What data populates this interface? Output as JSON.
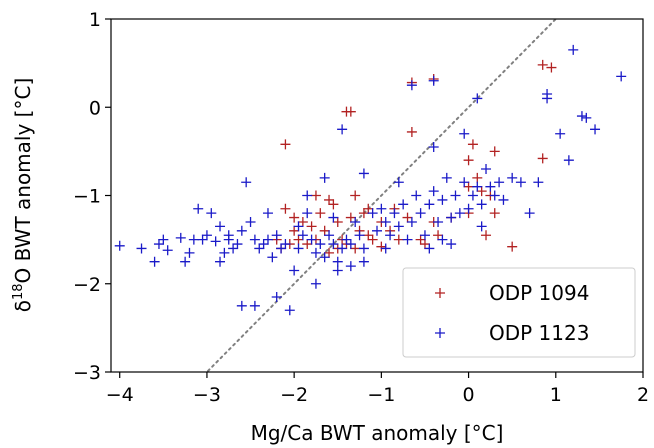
{
  "chart_data": {
    "type": "scatter",
    "title": "",
    "xlabel": "Mg/Ca BWT anomaly [°C]",
    "ylabel_parts": {
      "delta": "δ",
      "sup": "18",
      "rest": "O BWT anomaly [°C]"
    },
    "xlim": [
      -4.1,
      2.0
    ],
    "ylim": [
      -3.0,
      1.0
    ],
    "xticks": [
      -4,
      -3,
      -2,
      -1,
      0,
      1,
      2
    ],
    "yticks": [
      -3,
      -2,
      -1,
      0,
      1
    ],
    "xtick_labels": [
      "−4",
      "−3",
      "−2",
      "−1",
      "0",
      "1",
      "2"
    ],
    "ytick_labels": [
      "−3",
      "−2",
      "−1",
      "0",
      "1"
    ],
    "grid": false,
    "legend": {
      "placement": "bottom-right"
    },
    "reference_line": {
      "style": "dotted",
      "color": "#808080",
      "slope": 1,
      "intercept": 0
    },
    "series": [
      {
        "name": "ODP 1094",
        "color": "#b22222",
        "marker": "plus",
        "points": [
          [
            -2.1,
            -0.42
          ],
          [
            -1.35,
            -0.05
          ],
          [
            -1.4,
            -0.05
          ],
          [
            -0.65,
            0.28
          ],
          [
            -0.4,
            0.32
          ],
          [
            -0.65,
            -0.28
          ],
          [
            0.05,
            -0.42
          ],
          [
            0.0,
            -0.6
          ],
          [
            0.3,
            -0.5
          ],
          [
            0.85,
            0.48
          ],
          [
            0.95,
            0.45
          ],
          [
            0.85,
            -0.58
          ],
          [
            0.5,
            -1.58
          ],
          [
            0.2,
            -1.45
          ],
          [
            0.1,
            -0.8
          ],
          [
            0.15,
            -0.95
          ],
          [
            0.0,
            -0.9
          ],
          [
            0.25,
            -1.0
          ],
          [
            0.3,
            -1.2
          ],
          [
            0.0,
            -1.2
          ],
          [
            -0.4,
            -1.3
          ],
          [
            -0.2,
            -1.25
          ],
          [
            -0.35,
            -1.45
          ],
          [
            -0.55,
            -1.5
          ],
          [
            -0.7,
            -1.25
          ],
          [
            -0.8,
            -1.5
          ],
          [
            -0.85,
            -1.15
          ],
          [
            -1.0,
            -1.3
          ],
          [
            -1.1,
            -1.5
          ],
          [
            -1.15,
            -1.15
          ],
          [
            -1.2,
            -1.2
          ],
          [
            -1.25,
            -1.4
          ],
          [
            -1.3,
            -1.0
          ],
          [
            -1.35,
            -1.25
          ],
          [
            -1.4,
            -1.55
          ],
          [
            -1.45,
            -1.5
          ],
          [
            -1.5,
            -1.3
          ],
          [
            -1.55,
            -1.1
          ],
          [
            -1.6,
            -1.05
          ],
          [
            -1.65,
            -1.4
          ],
          [
            -1.7,
            -1.2
          ],
          [
            -1.75,
            -1.5
          ],
          [
            -1.8,
            -1.35
          ],
          [
            -1.85,
            -1.55
          ],
          [
            -1.9,
            -1.3
          ],
          [
            -1.95,
            -1.5
          ],
          [
            -2.0,
            -1.4
          ],
          [
            -2.05,
            -1.55
          ],
          [
            -2.1,
            -1.15
          ],
          [
            -2.15,
            -1.6
          ],
          [
            -2.2,
            -1.5
          ],
          [
            -1.5,
            -1.6
          ],
          [
            -1.3,
            -1.6
          ],
          [
            -1.0,
            -1.58
          ],
          [
            -0.9,
            -1.4
          ],
          [
            -0.5,
            -1.55
          ],
          [
            -1.15,
            -1.45
          ],
          [
            -1.75,
            -1.0
          ],
          [
            -1.6,
            -1.65
          ],
          [
            -2.0,
            -1.25
          ]
        ]
      },
      {
        "name": "ODP 1123",
        "color": "#1a1ac8",
        "marker": "plus",
        "points": [
          [
            -4.0,
            -1.57
          ],
          [
            -3.75,
            -1.6
          ],
          [
            -3.6,
            -1.75
          ],
          [
            -3.55,
            -1.55
          ],
          [
            -3.5,
            -1.5
          ],
          [
            -3.45,
            -1.62
          ],
          [
            -3.3,
            -1.48
          ],
          [
            -3.2,
            -1.65
          ],
          [
            -3.15,
            -1.5
          ],
          [
            -3.1,
            -1.15
          ],
          [
            -3.05,
            -1.5
          ],
          [
            -3.0,
            -1.45
          ],
          [
            -2.95,
            -1.2
          ],
          [
            -2.9,
            -1.52
          ],
          [
            -2.85,
            -1.75
          ],
          [
            -2.8,
            -1.65
          ],
          [
            -2.75,
            -1.45
          ],
          [
            -2.7,
            -1.6
          ],
          [
            -2.65,
            -1.55
          ],
          [
            -2.6,
            -1.4
          ],
          [
            -2.55,
            -0.85
          ],
          [
            -2.5,
            -1.3
          ],
          [
            -2.45,
            -1.5
          ],
          [
            -2.4,
            -1.6
          ],
          [
            -2.35,
            -1.55
          ],
          [
            -2.3,
            -1.5
          ],
          [
            -2.25,
            -1.7
          ],
          [
            -2.2,
            -1.45
          ],
          [
            -2.15,
            -1.6
          ],
          [
            -2.1,
            -1.55
          ],
          [
            -2.0,
            -1.85
          ],
          [
            -1.95,
            -1.6
          ],
          [
            -1.9,
            -1.45
          ],
          [
            -1.85,
            -1.2
          ],
          [
            -1.8,
            -1.5
          ],
          [
            -1.75,
            -1.65
          ],
          [
            -1.7,
            -1.55
          ],
          [
            -1.65,
            -1.7
          ],
          [
            -1.6,
            -1.45
          ],
          [
            -1.55,
            -1.55
          ],
          [
            -1.5,
            -1.75
          ],
          [
            -1.45,
            -1.6
          ],
          [
            -1.4,
            -1.5
          ],
          [
            -1.35,
            -1.55
          ],
          [
            -1.3,
            -1.3
          ],
          [
            -1.25,
            -1.45
          ],
          [
            -1.2,
            -1.6
          ],
          [
            -1.1,
            -1.2
          ],
          [
            -1.05,
            -1.4
          ],
          [
            -1.0,
            -1.15
          ],
          [
            -0.95,
            -1.3
          ],
          [
            -0.9,
            -1.45
          ],
          [
            -0.85,
            -1.2
          ],
          [
            -0.8,
            -1.35
          ],
          [
            -0.75,
            -1.1
          ],
          [
            -0.7,
            -1.5
          ],
          [
            -0.65,
            -1.3
          ],
          [
            -0.6,
            -1.0
          ],
          [
            -0.55,
            -1.2
          ],
          [
            -0.5,
            -1.45
          ],
          [
            -0.45,
            -1.1
          ],
          [
            -0.4,
            -0.95
          ],
          [
            -0.35,
            -1.3
          ],
          [
            -0.3,
            -1.05
          ],
          [
            -0.25,
            -0.8
          ],
          [
            -0.2,
            -1.25
          ],
          [
            -0.15,
            -1.0
          ],
          [
            -0.1,
            -1.2
          ],
          [
            -0.05,
            -0.85
          ],
          [
            0.0,
            -1.15
          ],
          [
            0.05,
            -1.0
          ],
          [
            0.1,
            -0.9
          ],
          [
            0.15,
            -1.1
          ],
          [
            0.2,
            -0.7
          ],
          [
            0.25,
            -0.9
          ],
          [
            0.3,
            -1.0
          ],
          [
            0.35,
            -0.85
          ],
          [
            0.4,
            -1.05
          ],
          [
            0.5,
            -0.8
          ],
          [
            0.6,
            -0.85
          ],
          [
            0.7,
            -1.2
          ],
          [
            0.8,
            -0.85
          ],
          [
            0.9,
            0.15
          ],
          [
            0.9,
            0.1
          ],
          [
            1.05,
            -0.3
          ],
          [
            1.15,
            -0.6
          ],
          [
            1.2,
            0.65
          ],
          [
            1.3,
            -0.1
          ],
          [
            1.35,
            -0.12
          ],
          [
            1.45,
            -0.25
          ],
          [
            1.75,
            0.35
          ],
          [
            0.1,
            0.1
          ],
          [
            -0.05,
            -0.3
          ],
          [
            -0.4,
            -0.45
          ],
          [
            -0.65,
            0.25
          ],
          [
            -0.4,
            0.3
          ],
          [
            -1.45,
            -0.25
          ],
          [
            -0.8,
            -0.85
          ],
          [
            -2.6,
            -2.25
          ],
          [
            -2.45,
            -2.25
          ],
          [
            -2.05,
            -2.3
          ],
          [
            -2.2,
            -2.15
          ],
          [
            -1.75,
            -2.0
          ],
          [
            -1.5,
            -1.85
          ],
          [
            -1.35,
            -1.8
          ],
          [
            -1.2,
            -1.75
          ],
          [
            -3.25,
            -1.75
          ],
          [
            -2.85,
            -1.35
          ],
          [
            -1.85,
            -1.0
          ],
          [
            -1.65,
            -0.8
          ],
          [
            -1.2,
            -0.75
          ],
          [
            -0.2,
            -1.55
          ],
          [
            0.15,
            -1.35
          ],
          [
            -0.3,
            -1.5
          ],
          [
            -1.55,
            -1.25
          ],
          [
            -1.95,
            -1.35
          ],
          [
            -2.3,
            -1.2
          ],
          [
            -2.75,
            -1.5
          ],
          [
            -0.45,
            -1.6
          ],
          [
            -0.95,
            -1.6
          ]
        ]
      }
    ]
  }
}
